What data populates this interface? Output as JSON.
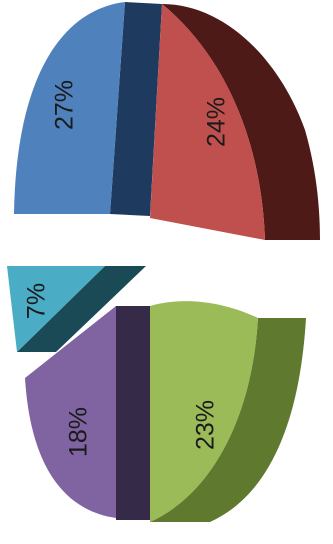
{
  "chart_data": {
    "type": "pie",
    "style": "3d-exploded",
    "orientation": "rotated-90",
    "title": "",
    "legend": "none",
    "slices": [
      {
        "value": 27,
        "label": "27%",
        "color": "#4f81bd",
        "side_color": "#1e3a5f"
      },
      {
        "value": 24,
        "label": "24%",
        "color": "#c0504d",
        "side_color": "#4d1a18"
      },
      {
        "value": 23,
        "label": "23%",
        "color": "#9bbb59",
        "side_color": "#5f7a2e"
      },
      {
        "value": 18,
        "label": "18%",
        "color": "#8064a2",
        "side_color": "#352a48"
      },
      {
        "value": 7,
        "label": "7%",
        "color": "#4bacc6",
        "side_color": "#1a4a55"
      }
    ]
  }
}
